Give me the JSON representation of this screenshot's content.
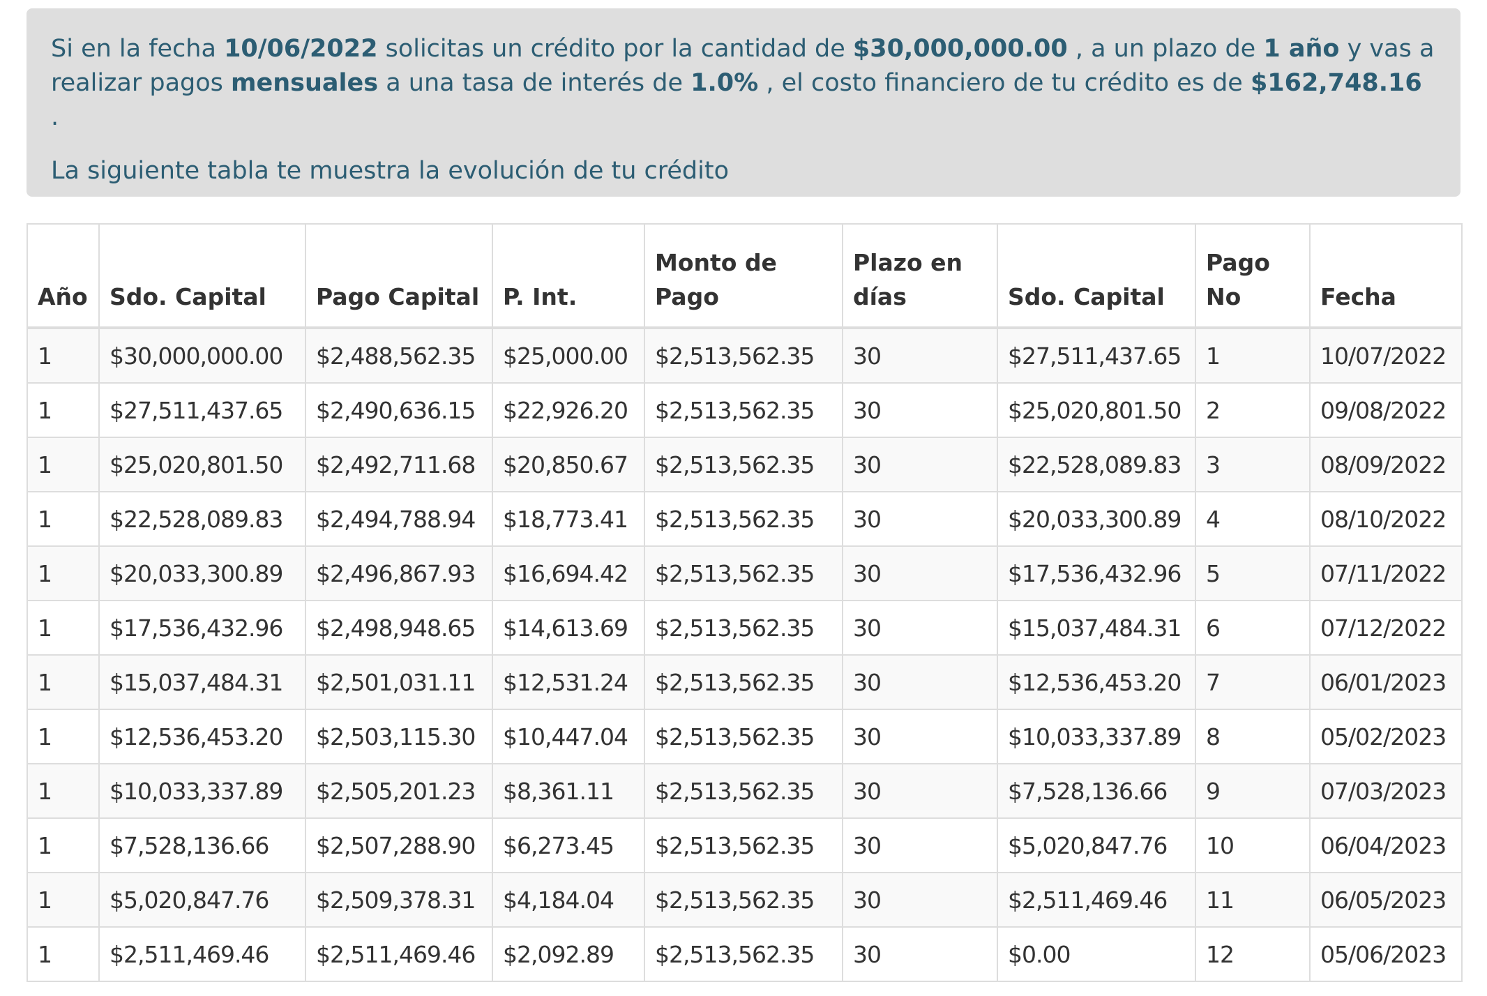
{
  "summary": {
    "t1": "Si en la fecha ",
    "date": "10/06/2022",
    "t2": " solicitas un crédito por la cantidad de ",
    "amount": "$30,000,000.00",
    "t3": " , a un plazo de ",
    "term": "1 año",
    "t4": " y vas a realizar pagos ",
    "frequency": "mensuales",
    "t5": " a una tasa de interés de ",
    "rate": "1.0%",
    "t6": " , el costo financiero de tu crédito es de ",
    "cost": "$162,748.16",
    "t7": " .",
    "table_intro": "La siguiente tabla te muestra la evolución de tu crédito"
  },
  "table": {
    "headers": [
      "Año",
      "Sdo. Capital",
      "Pago Capital",
      "P. Int.",
      "Monto de Pago",
      "Plazo en días",
      "Sdo. Capital",
      "Pago No",
      "Fecha"
    ],
    "rows": [
      [
        "1",
        "$30,000,000.00",
        "$2,488,562.35",
        "$25,000.00",
        "$2,513,562.35",
        "30",
        "$27,511,437.65",
        "1",
        "10/07/2022"
      ],
      [
        "1",
        "$27,511,437.65",
        "$2,490,636.15",
        "$22,926.20",
        "$2,513,562.35",
        "30",
        "$25,020,801.50",
        "2",
        "09/08/2022"
      ],
      [
        "1",
        "$25,020,801.50",
        "$2,492,711.68",
        "$20,850.67",
        "$2,513,562.35",
        "30",
        "$22,528,089.83",
        "3",
        "08/09/2022"
      ],
      [
        "1",
        "$22,528,089.83",
        "$2,494,788.94",
        "$18,773.41",
        "$2,513,562.35",
        "30",
        "$20,033,300.89",
        "4",
        "08/10/2022"
      ],
      [
        "1",
        "$20,033,300.89",
        "$2,496,867.93",
        "$16,694.42",
        "$2,513,562.35",
        "30",
        "$17,536,432.96",
        "5",
        "07/11/2022"
      ],
      [
        "1",
        "$17,536,432.96",
        "$2,498,948.65",
        "$14,613.69",
        "$2,513,562.35",
        "30",
        "$15,037,484.31",
        "6",
        "07/12/2022"
      ],
      [
        "1",
        "$15,037,484.31",
        "$2,501,031.11",
        "$12,531.24",
        "$2,513,562.35",
        "30",
        "$12,536,453.20",
        "7",
        "06/01/2023"
      ],
      [
        "1",
        "$12,536,453.20",
        "$2,503,115.30",
        "$10,447.04",
        "$2,513,562.35",
        "30",
        "$10,033,337.89",
        "8",
        "05/02/2023"
      ],
      [
        "1",
        "$10,033,337.89",
        "$2,505,201.23",
        "$8,361.11",
        "$2,513,562.35",
        "30",
        "$7,528,136.66",
        "9",
        "07/03/2023"
      ],
      [
        "1",
        "$7,528,136.66",
        "$2,507,288.90",
        "$6,273.45",
        "$2,513,562.35",
        "30",
        "$5,020,847.76",
        "10",
        "06/04/2023"
      ],
      [
        "1",
        "$5,020,847.76",
        "$2,509,378.31",
        "$4,184.04",
        "$2,513,562.35",
        "30",
        "$2,511,469.46",
        "11",
        "06/05/2023"
      ],
      [
        "1",
        "$2,511,469.46",
        "$2,511,469.46",
        "$2,092.89",
        "$2,513,562.35",
        "30",
        "$0.00",
        "12",
        "05/06/2023"
      ]
    ]
  },
  "colors": {
    "alert_background": "#dedede",
    "alert_text": "#2c5d73",
    "table_border": "#dddddd",
    "row_stripe": "#f9f9f9"
  }
}
